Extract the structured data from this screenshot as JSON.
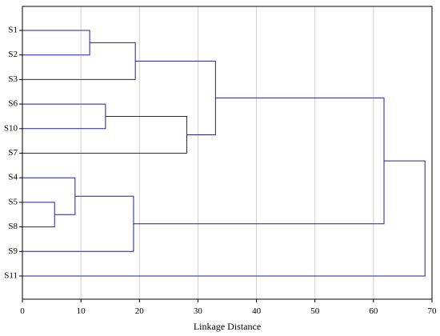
{
  "chart_data": {
    "type": "dendrogram",
    "orientation": "horizontal",
    "xlabel": "Linkage Distance",
    "xlim": [
      0,
      70
    ],
    "xticks": [
      0,
      10,
      20,
      30,
      40,
      50,
      60,
      70
    ],
    "grid": "vertical",
    "leaves": [
      "S1",
      "S2",
      "S3",
      "S6",
      "S10",
      "S7",
      "S4",
      "S5",
      "S8",
      "S9",
      "S11"
    ],
    "merges": [
      {
        "id": "c1",
        "children": [
          "S1",
          "S2"
        ],
        "distance": 11.5
      },
      {
        "id": "c2",
        "children": [
          "c1",
          "S3"
        ],
        "distance": 19.3
      },
      {
        "id": "c3",
        "children": [
          "S6",
          "S10"
        ],
        "distance": 14.2
      },
      {
        "id": "c4",
        "children": [
          "c3",
          "S7"
        ],
        "distance": 28.1
      },
      {
        "id": "c5",
        "children": [
          "c2",
          "c4"
        ],
        "distance": 33.0
      },
      {
        "id": "c6",
        "children": [
          "S5",
          "S8"
        ],
        "distance": 5.5
      },
      {
        "id": "c7",
        "children": [
          "S4",
          "c6"
        ],
        "distance": 9.0
      },
      {
        "id": "c8",
        "children": [
          "c7",
          "S9"
        ],
        "distance": 19.0
      },
      {
        "id": "c9",
        "children": [
          "c5",
          "c8"
        ],
        "distance": 61.8
      },
      {
        "id": "c10",
        "children": [
          "c9",
          "S11"
        ],
        "distance": 68.8
      }
    ],
    "colors": {
      "link": "#1f1f9f",
      "grid": "#d0d0d0",
      "frame": "#000000"
    }
  }
}
